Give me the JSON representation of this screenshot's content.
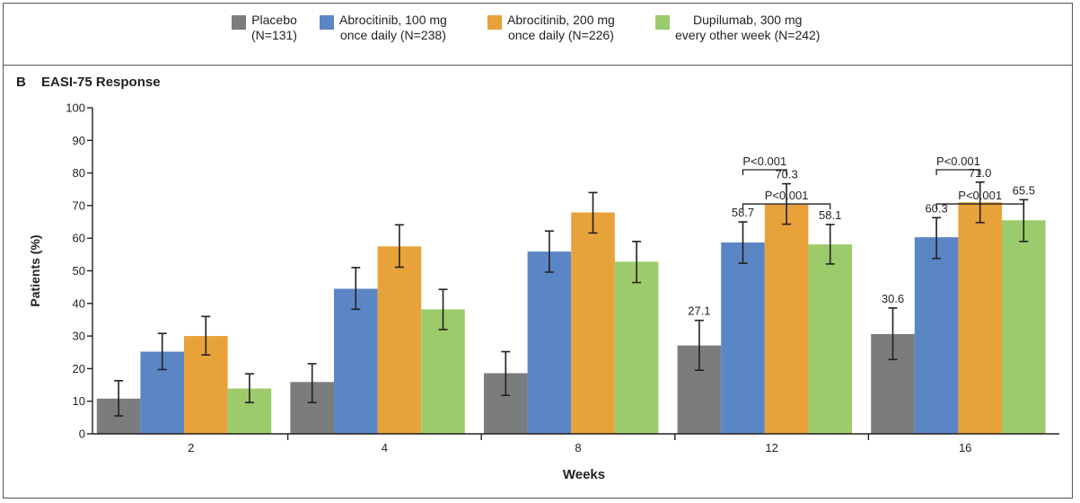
{
  "legend": [
    {
      "name": "Placebo",
      "detail": "(N=131)",
      "color": "#7b7c7e"
    },
    {
      "name": "Abrocitinib, 100 mg",
      "detail": "once daily (N=238)",
      "color": "#5b86c5"
    },
    {
      "name": "Abrocitinib, 200 mg",
      "detail": "once daily (N=226)",
      "color": "#e8a23a"
    },
    {
      "name": "Dupilumab, 300 mg",
      "detail": "every other week (N=242)",
      "color": "#9ccb6b"
    }
  ],
  "panel": {
    "label": "B",
    "title": "EASI-75 Response"
  },
  "chart_data": {
    "type": "bar",
    "title": "EASI-75 Response",
    "xlabel": "Weeks",
    "ylabel": "Patients (%)",
    "ylim": [
      0,
      100
    ],
    "yticks": [
      0,
      10,
      20,
      30,
      40,
      50,
      60,
      70,
      80,
      90,
      100
    ],
    "categories": [
      "2",
      "4",
      "8",
      "12",
      "16"
    ],
    "legend_position": "top",
    "series": [
      {
        "name": "Placebo (N=131)",
        "color": "#7b7c7e",
        "values": [
          10.8,
          15.9,
          18.6,
          27.1,
          30.6
        ],
        "ci_low": [
          5.5,
          9.6,
          11.8,
          19.5,
          22.8
        ],
        "ci_high": [
          16.3,
          21.5,
          25.2,
          34.8,
          38.6
        ]
      },
      {
        "name": "Abrocitinib, 100 mg once daily (N=238)",
        "color": "#5b86c5",
        "values": [
          25.2,
          44.5,
          55.9,
          58.7,
          60.3
        ],
        "ci_low": [
          19.7,
          38.2,
          49.6,
          52.3,
          53.8
        ],
        "ci_high": [
          30.8,
          51.0,
          62.2,
          65.0,
          66.3
        ]
      },
      {
        "name": "Abrocitinib, 200 mg once daily (N=226)",
        "color": "#e8a23a",
        "values": [
          30.0,
          57.5,
          67.9,
          70.3,
          71.0
        ],
        "ci_low": [
          24.2,
          51.1,
          61.6,
          64.3,
          64.8
        ],
        "ci_high": [
          36.0,
          64.1,
          74.0,
          76.7,
          77.2
        ]
      },
      {
        "name": "Dupilumab, 300 mg every other week (N=242)",
        "color": "#9ccb6b",
        "values": [
          13.9,
          38.2,
          52.8,
          58.1,
          65.5
        ],
        "ci_low": [
          9.6,
          32.0,
          46.4,
          52.1,
          59.0
        ],
        "ci_high": [
          18.4,
          44.3,
          59.0,
          64.2,
          71.8
        ]
      }
    ],
    "data_labels": [
      {
        "category": "12",
        "series": 0,
        "text": "27.1"
      },
      {
        "category": "12",
        "series": 1,
        "text": "58.7"
      },
      {
        "category": "12",
        "series": 2,
        "text": "70.3"
      },
      {
        "category": "12",
        "series": 3,
        "text": "58.1"
      },
      {
        "category": "16",
        "series": 0,
        "text": "30.6"
      },
      {
        "category": "16",
        "series": 1,
        "text": "60.3"
      },
      {
        "category": "16",
        "series": 2,
        "text": "71.0"
      },
      {
        "category": "16",
        "series": 3,
        "text": "65.5"
      }
    ],
    "annotations": [
      {
        "category": "12",
        "from_series": 1,
        "to_series": 2,
        "text": "P<0.001",
        "level": 81
      },
      {
        "category": "12",
        "from_series": 1,
        "to_series": 3,
        "text": "P<0.001",
        "level": 70.5
      },
      {
        "category": "16",
        "from_series": 1,
        "to_series": 2,
        "text": "P<0.001",
        "level": 81
      },
      {
        "category": "16",
        "from_series": 1,
        "to_series": 3,
        "text": "P<0.001",
        "level": 70.5
      }
    ]
  }
}
